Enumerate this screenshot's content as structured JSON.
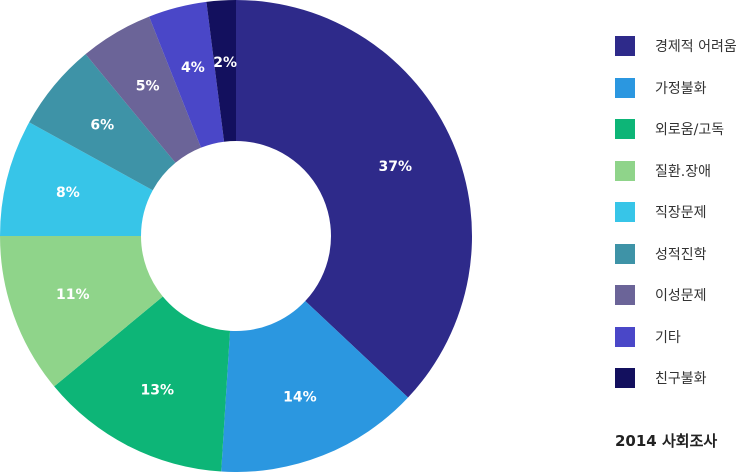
{
  "chart_data": {
    "type": "pie",
    "donut": true,
    "categories": [
      "경제적 어려움",
      "가정불화",
      "외로움/고독",
      "질환.장애",
      "직장문제",
      "성적진학",
      "이성문제",
      " 기타",
      "친구불화"
    ],
    "values": [
      37,
      14,
      13,
      11,
      8,
      6,
      5,
      4,
      2
    ],
    "value_labels": [
      "37%",
      "14%",
      "13%",
      "11%",
      "8%",
      "6%",
      "5%",
      "4%",
      "2%"
    ],
    "colors": [
      "#2e2a8a",
      "#2b97e0",
      "#0db577",
      "#8fd48a",
      "#37c5e8",
      "#3e93a7",
      "#6b6498",
      "#4a47c8",
      "#13105e"
    ],
    "legend_position": "right",
    "note": "2014 사회조사"
  }
}
